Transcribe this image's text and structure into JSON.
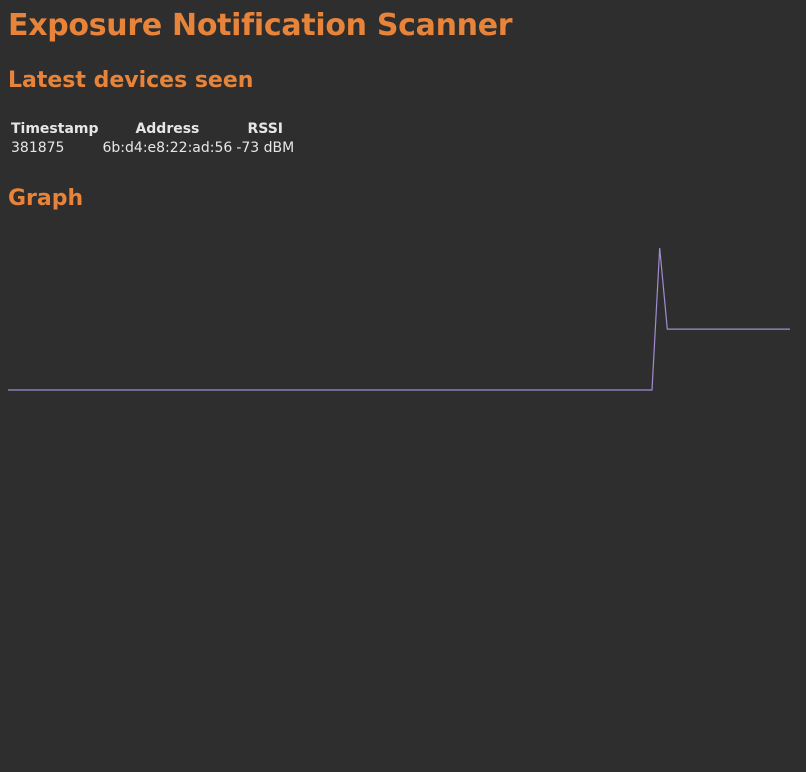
{
  "app": {
    "title": "Exposure Notification Scanner"
  },
  "latest": {
    "heading": "Latest devices seen",
    "columns": [
      "Timestamp",
      "Address",
      "RSSI"
    ],
    "rows": [
      {
        "timestamp": "381875",
        "address": "6b:d4:e8:22:ad:56",
        "rssi": "-73 dBM"
      }
    ]
  },
  "graph": {
    "heading": "Graph",
    "line_color": "#a08ccf"
  },
  "chart_data": {
    "type": "line",
    "title": "",
    "xlabel": "",
    "ylabel": "",
    "grid": false,
    "x_count": 101,
    "series": [
      {
        "values": [
          0,
          0,
          0,
          0,
          0,
          0,
          0,
          0,
          0,
          0,
          0,
          0,
          0,
          0,
          0,
          0,
          0,
          0,
          0,
          0,
          0,
          0,
          0,
          0,
          0,
          0,
          0,
          0,
          0,
          0,
          0,
          0,
          0,
          0,
          0,
          0,
          0,
          0,
          0,
          0,
          0,
          0,
          0,
          0,
          0,
          0,
          0,
          0,
          0,
          0,
          0,
          0,
          0,
          0,
          0,
          0,
          0,
          0,
          0,
          0,
          0,
          0,
          0,
          0,
          0,
          0,
          0,
          0,
          0,
          0,
          0,
          0,
          0,
          0,
          0,
          0,
          0,
          0,
          0,
          0,
          0,
          0,
          0,
          0,
          0,
          100,
          42.9,
          42.9,
          42.9,
          42.9,
          42.9,
          42.9,
          42.9,
          42.9,
          42.9,
          42.9,
          42.9,
          42.9,
          42.9,
          42.9,
          42.9,
          42.9,
          42.9
        ]
      }
    ]
  }
}
